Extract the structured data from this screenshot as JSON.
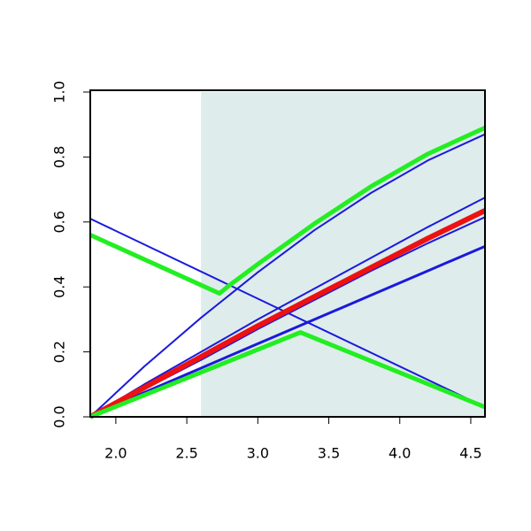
{
  "chart_data": {
    "type": "line",
    "xlim": [
      1.82,
      4.6
    ],
    "ylim": [
      0,
      1
    ],
    "xticks": [
      {
        "value": 2,
        "label": "2.0"
      },
      2.5,
      {
        "value": 3,
        "label": "3.0"
      },
      3.5,
      {
        "value": 4,
        "label": "4.0"
      },
      4.5
    ],
    "yticks": [
      {
        "value": 0,
        "label": "0.0"
      },
      0.2,
      0.4,
      0.6,
      0.8,
      {
        "value": 1,
        "label": "1.0"
      }
    ],
    "shaded_region": {
      "x": [
        2.6,
        4.6
      ],
      "color": "#dfecec"
    },
    "series": [
      {
        "color": "#1a1adc",
        "line_width": 2,
        "x": [
          1.82,
          4.6
        ],
        "values": [
          0.61,
          0.03
        ]
      },
      {
        "color": "#1a1adc",
        "line_width": 2,
        "x": [
          1.82,
          2.2,
          2.6,
          3.0,
          3.4,
          3.8,
          4.2,
          4.6
        ],
        "values": [
          0,
          0.155,
          0.305,
          0.445,
          0.575,
          0.69,
          0.79,
          0.87
        ]
      },
      {
        "color": "#1a1adc",
        "line_width": 2,
        "x": [
          1.82,
          2.2,
          2.6,
          3.0,
          3.4,
          3.8,
          4.2,
          4.6
        ],
        "values": [
          0,
          0.1,
          0.2,
          0.3,
          0.395,
          0.49,
          0.585,
          0.675
        ]
      },
      {
        "color": "#1a1adc",
        "line_width": 2,
        "x": [
          1.82,
          2.2,
          2.6,
          3.0,
          3.4,
          3.8,
          4.2,
          4.6
        ],
        "values": [
          0,
          0.085,
          0.175,
          0.27,
          0.36,
          0.45,
          0.535,
          0.615
        ]
      },
      {
        "color": "#1a1adc",
        "line_width": 3,
        "x": [
          1.82,
          2.2,
          2.6,
          3.0,
          3.4,
          3.8,
          4.2,
          4.6
        ],
        "values": [
          0,
          0.075,
          0.15,
          0.225,
          0.3,
          0.375,
          0.45,
          0.525
        ]
      },
      {
        "color": "#ee1111",
        "line_width": 6,
        "x": [
          1.82,
          2.2,
          2.6,
          3.0,
          3.4,
          3.8,
          4.2,
          4.6
        ],
        "values": [
          0,
          0.09,
          0.185,
          0.28,
          0.37,
          0.46,
          0.55,
          0.635
        ]
      },
      {
        "color": "#22ee22",
        "line_width": 5,
        "x": [
          1.82,
          2.73,
          2.8,
          3.0,
          3.4,
          3.8,
          4.2,
          4.6
        ],
        "values": [
          0.56,
          0.38,
          0.405,
          0.47,
          0.595,
          0.71,
          0.81,
          0.89
        ]
      },
      {
        "color": "#22ee22",
        "line_width": 5,
        "x": [
          1.82,
          3.3,
          4.6
        ],
        "values": [
          0,
          0.26,
          0.03
        ]
      }
    ]
  }
}
